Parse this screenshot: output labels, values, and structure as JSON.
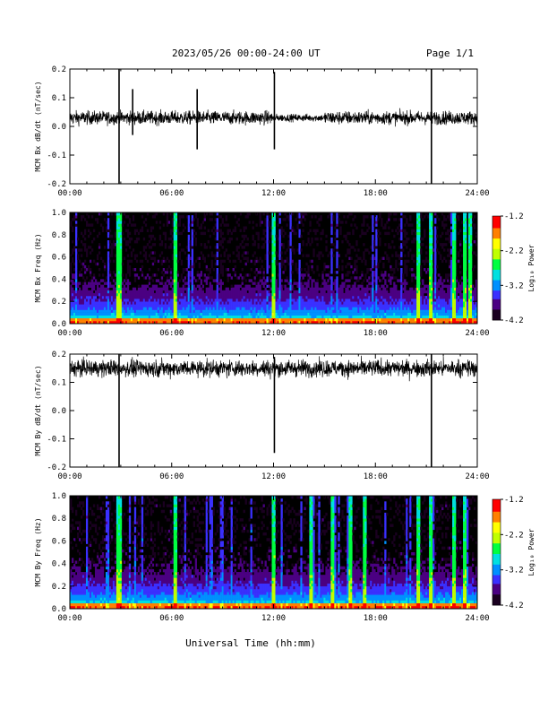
{
  "header": {
    "title": "2023/05/26  00:00-24:00 UT",
    "page": "Page 1/1"
  },
  "xlabel": "Universal Time (hh:mm)",
  "colors": {
    "trace": "#000000",
    "spectrogram_background": "#000000"
  },
  "colorbar": {
    "label": "Log₁₀ Power",
    "ticks": [
      "-1.2",
      "-2.2",
      "-3.2",
      "-4.2"
    ],
    "range": [
      -4.2,
      -1.2
    ],
    "colormap": [
      "#1a0020",
      "#4b0082",
      "#3a30ff",
      "#0090ff",
      "#00e0e0",
      "#00ff40",
      "#c0ff00",
      "#ffff00",
      "#ff8000",
      "#ff0000"
    ]
  },
  "chart_data": [
    {
      "type": "line",
      "panel": "MCM Bx dB/dt",
      "ylabel": "MCM Bx dB/dt (nT/sec)",
      "ylim": [
        -0.2,
        0.2
      ],
      "yticks": [
        "0.2",
        "0.1",
        "0.0",
        "-0.1",
        "-0.2"
      ],
      "xlim_hours": [
        0,
        24
      ],
      "xticks": [
        "00:00",
        "06:00",
        "12:00",
        "18:00",
        "24:00"
      ],
      "baseline": 0.03,
      "noise_amplitude": 0.02,
      "events": [
        {
          "t": 2.9,
          "min": -0.2,
          "max": 0.2
        },
        {
          "t": 3.7,
          "min": -0.03,
          "max": 0.13
        },
        {
          "t": 7.5,
          "min": -0.08,
          "max": 0.13
        },
        {
          "t": 12.05,
          "min": -0.08,
          "max": 0.19
        },
        {
          "t": 21.3,
          "min": -0.2,
          "max": 0.2
        }
      ]
    },
    {
      "type": "heatmap",
      "panel": "MCM Bx Freq",
      "ylabel": "MCM Bx Freq (Hz)",
      "ylim": [
        0.0,
        1.0
      ],
      "yticks": [
        "1.0",
        "0.8",
        "0.6",
        "0.4",
        "0.2",
        "0.0"
      ],
      "xlim_hours": [
        0,
        24
      ],
      "xticks": [
        "00:00",
        "06:00",
        "12:00",
        "18:00",
        "24:00"
      ],
      "zlim": [
        -4.2,
        -1.2
      ],
      "strong_bursts_hours": [
        2.9,
        6.2,
        12.0,
        20.5,
        21.3,
        22.6,
        23.3,
        23.6
      ]
    },
    {
      "type": "line",
      "panel": "MCM By dB/dt",
      "ylabel": "MCM By dB/dt (nT/sec)",
      "ylim": [
        -0.2,
        0.2
      ],
      "yticks": [
        "0.2",
        "0.1",
        "0.0",
        "-0.1",
        "-0.2"
      ],
      "xlim_hours": [
        0,
        24
      ],
      "xticks": [
        "00:00",
        "06:00",
        "12:00",
        "18:00",
        "24:00"
      ],
      "baseline": 0.15,
      "noise_amplitude": 0.025,
      "events": [
        {
          "t": 2.9,
          "min": -0.2,
          "max": 0.2
        },
        {
          "t": 12.05,
          "min": -0.15,
          "max": 0.19
        },
        {
          "t": 21.3,
          "min": -0.2,
          "max": 0.2
        }
      ]
    },
    {
      "type": "heatmap",
      "panel": "MCM By Freq",
      "ylabel": "MCM By Freq (Hz)",
      "ylim": [
        0.0,
        1.0
      ],
      "yticks": [
        "1.0",
        "0.8",
        "0.6",
        "0.4",
        "0.2",
        "0.0"
      ],
      "xlim_hours": [
        0,
        24
      ],
      "xticks": [
        "00:00",
        "06:00",
        "12:00",
        "18:00",
        "24:00"
      ],
      "zlim": [
        -4.2,
        -1.2
      ],
      "strong_bursts_hours": [
        2.9,
        6.2,
        12.0,
        14.2,
        15.5,
        16.5,
        17.4,
        20.5,
        21.3,
        22.6,
        23.3
      ]
    }
  ]
}
